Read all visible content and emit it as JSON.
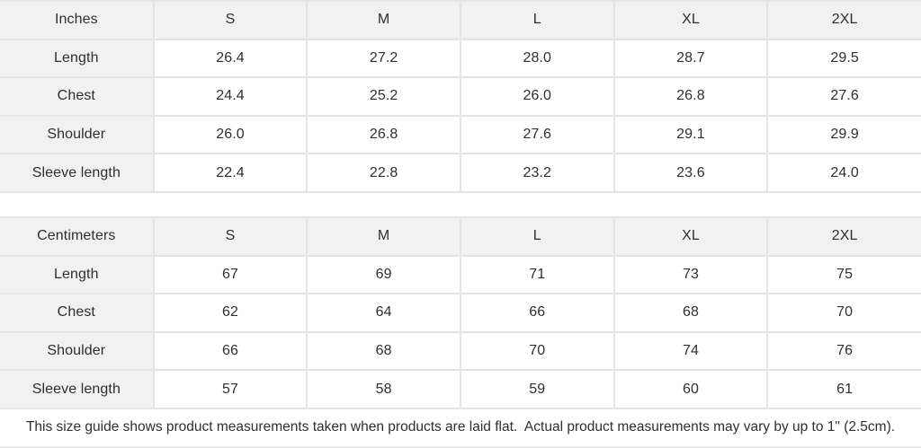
{
  "colors": {
    "header_cell_bg": "#f1f1f1",
    "border": "#e4e4e4",
    "text": "#2f2f2f",
    "data_cell_bg": "#ffffff"
  },
  "tables": [
    {
      "unit_label": "Inches",
      "sizes": [
        "S",
        "M",
        "L",
        "XL",
        "2XL"
      ],
      "rows": [
        {
          "label": "Length",
          "values": [
            "26.4",
            "27.2",
            "28.0",
            "28.7",
            "29.5"
          ]
        },
        {
          "label": "Chest",
          "values": [
            "24.4",
            "25.2",
            "26.0",
            "26.8",
            "27.6"
          ]
        },
        {
          "label": "Shoulder",
          "values": [
            "26.0",
            "26.8",
            "27.6",
            "29.1",
            "29.9"
          ]
        },
        {
          "label": "Sleeve length",
          "values": [
            "22.4",
            "22.8",
            "23.2",
            "23.6",
            "24.0"
          ]
        }
      ]
    },
    {
      "unit_label": "Centimeters",
      "sizes": [
        "S",
        "M",
        "L",
        "XL",
        "2XL"
      ],
      "rows": [
        {
          "label": "Length",
          "values": [
            "67",
            "69",
            "71",
            "73",
            "75"
          ]
        },
        {
          "label": "Chest",
          "values": [
            "62",
            "64",
            "66",
            "68",
            "70"
          ]
        },
        {
          "label": "Shoulder",
          "values": [
            "66",
            "68",
            "70",
            "74",
            "76"
          ]
        },
        {
          "label": "Sleeve length",
          "values": [
            "57",
            "58",
            "59",
            "60",
            "61"
          ]
        }
      ]
    }
  ],
  "footer": {
    "note": "This size guide shows product measurements taken when products are laid flat.  Actual product measurements may vary by up to 1\" (2.5cm)."
  }
}
